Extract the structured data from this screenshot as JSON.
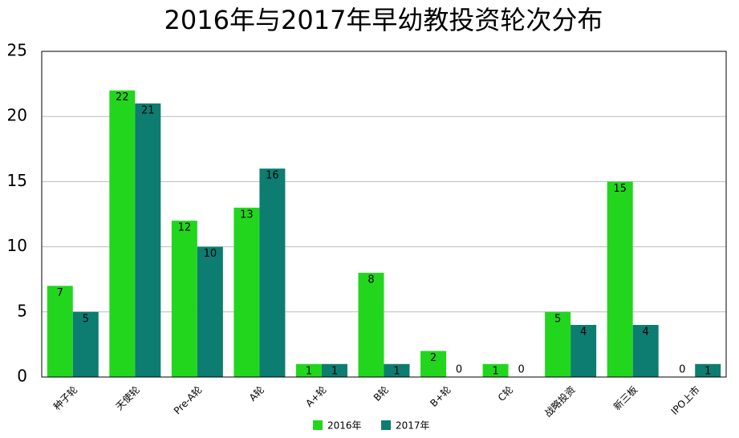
{
  "chart_data": {
    "type": "bar",
    "title": "2016年与2017年早幼教投资轮次分布",
    "categories": [
      "种子轮",
      "天使轮",
      "Pre-A轮",
      "A轮",
      "A+轮",
      "B轮",
      "B+轮",
      "C轮",
      "战略投资",
      "新三板",
      "IPO上市"
    ],
    "series": [
      {
        "name": "2016年",
        "color": "#22d61e",
        "values": [
          7,
          22,
          12,
          13,
          1,
          8,
          2,
          1,
          5,
          15,
          0
        ]
      },
      {
        "name": "2017年",
        "color": "#0c7d70",
        "values": [
          5,
          21,
          10,
          16,
          1,
          1,
          0,
          0,
          4,
          4,
          1
        ]
      }
    ],
    "ylim": [
      0,
      25
    ],
    "yticks": [
      0,
      5,
      10,
      15,
      20,
      25
    ],
    "grid": true,
    "legend": "bottom"
  }
}
